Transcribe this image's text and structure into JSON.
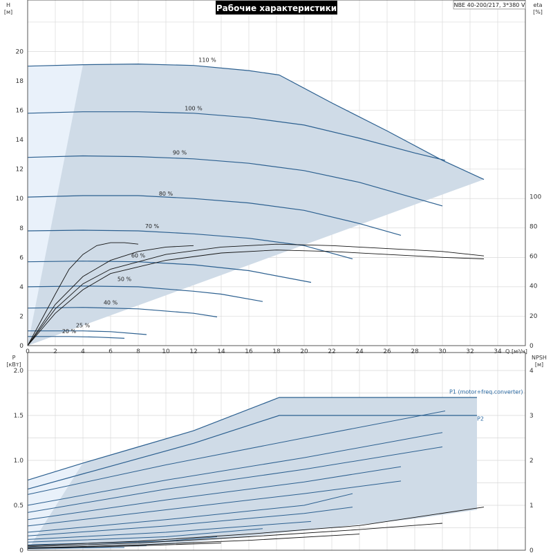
{
  "chart_data": [
    {
      "type": "line",
      "title": "Рабочие характеристики",
      "model_label": "NBE 40-200/217, 3*380 V",
      "ylabel": "H",
      "yunit": "[м]",
      "y2label": "eta",
      "y2unit": "[%]",
      "xlabel": "Q",
      "xunit": "[м³/ч]",
      "xlim": [
        0,
        36
      ],
      "ylim": [
        0,
        23.5
      ],
      "y2lim": [
        0,
        100
      ],
      "xticks": [
        "0",
        "2",
        "4",
        "6",
        "8",
        "10",
        "12",
        "14",
        "16",
        "18",
        "20",
        "22",
        "24",
        "26",
        "28",
        "30",
        "32",
        "34"
      ],
      "yticks": [
        "0",
        "2",
        "4",
        "6",
        "8",
        "10",
        "12",
        "14",
        "16",
        "18",
        "20"
      ],
      "y2ticks": [
        "0",
        "20",
        "40",
        "60",
        "80",
        "100"
      ],
      "grid": true,
      "envelope": [
        [
          0,
          0
        ],
        [
          0,
          19
        ],
        [
          4,
          19.1
        ],
        [
          8,
          19.15
        ],
        [
          12,
          19.05
        ],
        [
          16,
          18.7
        ],
        [
          18.2,
          18.4
        ],
        [
          22,
          16.5
        ],
        [
          26,
          14.6
        ],
        [
          30,
          12.6
        ],
        [
          33,
          11.3
        ],
        [
          0,
          0
        ]
      ],
      "series": [
        {
          "label": "110 %",
          "label_at": [
            13,
            19.2
          ],
          "points": [
            [
              0,
              19.0
            ],
            [
              4,
              19.1
            ],
            [
              8,
              19.15
            ],
            [
              12,
              19.05
            ],
            [
              16,
              18.7
            ],
            [
              18.2,
              18.4
            ]
          ]
        },
        {
          "label": "100 %",
          "label_at": [
            12,
            15.9
          ],
          "points": [
            [
              0,
              15.8
            ],
            [
              4,
              15.9
            ],
            [
              8,
              15.9
            ],
            [
              12,
              15.8
            ],
            [
              16,
              15.5
            ],
            [
              20,
              15.0
            ],
            [
              24,
              14.1
            ],
            [
              28,
              13.1
            ],
            [
              30.2,
              12.6
            ]
          ]
        },
        {
          "label": "90 %",
          "label_at": [
            11,
            12.9
          ],
          "points": [
            [
              0,
              12.8
            ],
            [
              4,
              12.9
            ],
            [
              8,
              12.85
            ],
            [
              12,
              12.7
            ],
            [
              16,
              12.4
            ],
            [
              20,
              11.9
            ],
            [
              24,
              11.1
            ],
            [
              27,
              10.3
            ],
            [
              30,
              9.5
            ]
          ]
        },
        {
          "label": "80 %",
          "label_at": [
            10,
            10.1
          ],
          "points": [
            [
              0,
              10.1
            ],
            [
              4,
              10.2
            ],
            [
              8,
              10.2
            ],
            [
              12,
              10.0
            ],
            [
              16,
              9.7
            ],
            [
              20,
              9.2
            ],
            [
              24,
              8.3
            ],
            [
              27,
              7.5
            ]
          ]
        },
        {
          "label": "70 %",
          "label_at": [
            9,
            7.9
          ],
          "points": [
            [
              0,
              7.8
            ],
            [
              4,
              7.85
            ],
            [
              8,
              7.8
            ],
            [
              12,
              7.6
            ],
            [
              16,
              7.3
            ],
            [
              20,
              6.8
            ],
            [
              23.5,
              5.9
            ]
          ]
        },
        {
          "label": "60 %",
          "label_at": [
            8,
            5.9
          ],
          "points": [
            [
              0,
              5.7
            ],
            [
              4,
              5.75
            ],
            [
              8,
              5.7
            ],
            [
              12,
              5.5
            ],
            [
              16,
              5.1
            ],
            [
              20.5,
              4.3
            ]
          ]
        },
        {
          "label": "50 %",
          "label_at": [
            7,
            4.3
          ],
          "points": [
            [
              0,
              4.0
            ],
            [
              4,
              4.05
            ],
            [
              8,
              4.0
            ],
            [
              12,
              3.7
            ],
            [
              14,
              3.5
            ],
            [
              17,
              3.0
            ]
          ]
        },
        {
          "label": "40 %",
          "label_at": [
            6,
            2.7
          ],
          "points": [
            [
              0,
              2.55
            ],
            [
              4,
              2.6
            ],
            [
              8,
              2.5
            ],
            [
              12,
              2.2
            ],
            [
              13.7,
              1.95
            ]
          ]
        },
        {
          "label": "25 %",
          "label_at": [
            4,
            1.15
          ],
          "points": [
            [
              0,
              1.0
            ],
            [
              4,
              1.0
            ],
            [
              6,
              0.95
            ],
            [
              8.6,
              0.75
            ]
          ]
        },
        {
          "label": "20 %",
          "label_at": [
            3,
            0.75
          ],
          "points": [
            [
              0,
              0.62
            ],
            [
              3,
              0.62
            ],
            [
              5,
              0.58
            ],
            [
              7,
              0.5
            ]
          ]
        }
      ],
      "efficiency_curves": [
        {
          "points": [
            [
              0,
              0
            ],
            [
              2,
              2.5
            ],
            [
              4,
              4.2
            ],
            [
              6,
              5.2
            ],
            [
              10,
              6.2
            ],
            [
              14,
              6.7
            ],
            [
              18,
              6.9
            ],
            [
              22,
              6.8
            ],
            [
              26,
              6.6
            ],
            [
              30,
              6.4
            ],
            [
              33,
              6.1
            ]
          ]
        },
        {
          "points": [
            [
              0,
              0
            ],
            [
              2,
              2.2
            ],
            [
              4,
              3.8
            ],
            [
              6,
              4.9
            ],
            [
              10,
              5.8
            ],
            [
              14,
              6.3
            ],
            [
              18,
              6.5
            ],
            [
              22,
              6.4
            ],
            [
              26,
              6.2
            ],
            [
              30,
              6.0
            ],
            [
              33,
              5.9
            ]
          ]
        },
        {
          "points": [
            [
              0,
              0
            ],
            [
              2,
              3.5
            ],
            [
              3,
              5.2
            ],
            [
              4,
              6.2
            ],
            [
              5,
              6.8
            ],
            [
              6,
              7.0
            ],
            [
              7,
              7.0
            ],
            [
              8,
              6.9
            ]
          ]
        },
        {
          "points": [
            [
              0,
              0
            ],
            [
              2,
              2.8
            ],
            [
              4,
              4.7
            ],
            [
              6,
              5.8
            ],
            [
              8,
              6.4
            ],
            [
              10,
              6.7
            ],
            [
              12,
              6.8
            ]
          ]
        }
      ]
    },
    {
      "type": "line",
      "ylabel": "P",
      "yunit": "[кВт]",
      "y2label": "NPSH",
      "y2unit": "[м]",
      "xlim": [
        0,
        36
      ],
      "ylim": [
        0,
        2.2
      ],
      "y2lim": [
        0,
        4.4
      ],
      "yticks": [
        "0",
        "0.5",
        "1.0",
        "1.5",
        "2.0"
      ],
      "y2ticks": [
        "0",
        "1",
        "2",
        "3",
        "4"
      ],
      "grid": true,
      "envelope": [
        [
          0,
          0.78
        ],
        [
          4,
          0.97
        ],
        [
          8,
          1.15
        ],
        [
          12,
          1.33
        ],
        [
          18.2,
          1.7
        ],
        [
          32.5,
          1.7
        ],
        [
          32.5,
          0.45
        ],
        [
          28,
          0.35
        ],
        [
          20,
          0.22
        ],
        [
          10,
          0.06
        ],
        [
          0,
          0.0
        ]
      ],
      "series": [
        {
          "name": "P1 (motor+freq.converter)",
          "label_at": [
            30.5,
            1.72
          ],
          "points": [
            [
              0,
              0.78
            ],
            [
              4,
              0.97
            ],
            [
              8,
              1.15
            ],
            [
              12,
              1.33
            ],
            [
              18.2,
              1.7
            ],
            [
              32.5,
              1.7
            ]
          ]
        },
        {
          "name": "P2",
          "label_at": [
            32.5,
            1.42
          ],
          "points": [
            [
              0,
              0.68
            ],
            [
              4,
              0.85
            ],
            [
              8,
              1.02
            ],
            [
              12,
              1.19
            ],
            [
              18.2,
              1.5
            ],
            [
              32.5,
              1.5
            ]
          ]
        },
        {
          "points": [
            [
              0,
              0.62
            ],
            [
              10,
              0.95
            ],
            [
              20,
              1.25
            ],
            [
              30.2,
              1.55
            ]
          ]
        },
        {
          "points": [
            [
              0,
              0.5
            ],
            [
              10,
              0.78
            ],
            [
              20,
              1.03
            ],
            [
              30,
              1.31
            ]
          ]
        },
        {
          "points": [
            [
              0,
              0.42
            ],
            [
              10,
              0.68
            ],
            [
              20,
              0.9
            ],
            [
              30,
              1.15
            ]
          ]
        },
        {
          "points": [
            [
              0,
              0.34
            ],
            [
              10,
              0.56
            ],
            [
              20,
              0.76
            ],
            [
              27,
              0.93
            ]
          ]
        },
        {
          "points": [
            [
              0,
              0.27
            ],
            [
              10,
              0.45
            ],
            [
              20,
              0.63
            ],
            [
              27,
              0.77
            ]
          ]
        },
        {
          "points": [
            [
              0,
              0.2
            ],
            [
              10,
              0.34
            ],
            [
              20,
              0.5
            ],
            [
              23.5,
              0.63
            ]
          ]
        },
        {
          "points": [
            [
              0,
              0.16
            ],
            [
              10,
              0.27
            ],
            [
              20,
              0.41
            ],
            [
              23.5,
              0.48
            ]
          ]
        },
        {
          "points": [
            [
              0,
              0.12
            ],
            [
              10,
              0.2
            ],
            [
              20.5,
              0.32
            ]
          ]
        },
        {
          "points": [
            [
              0,
              0.09
            ],
            [
              10,
              0.15
            ],
            [
              17,
              0.24
            ]
          ]
        },
        {
          "points": [
            [
              0,
              0.06
            ],
            [
              10,
              0.1
            ],
            [
              13.7,
              0.15
            ]
          ]
        },
        {
          "points": [
            [
              0,
              0.03
            ],
            [
              4,
              0.035
            ],
            [
              8.6,
              0.05
            ]
          ]
        },
        {
          "points": [
            [
              0,
              0.02
            ],
            [
              4,
              0.025
            ],
            [
              7,
              0.03
            ]
          ]
        }
      ],
      "npsh_curves": [
        {
          "points": [
            [
              0,
              0.1
            ],
            [
              8,
              0.2
            ],
            [
              16,
              0.36
            ],
            [
              24,
              0.55
            ],
            [
              33,
              0.96
            ]
          ]
        },
        {
          "points": [
            [
              0,
              0.08
            ],
            [
              8,
              0.16
            ],
            [
              16,
              0.3
            ],
            [
              24,
              0.46
            ],
            [
              30,
              0.6
            ]
          ]
        },
        {
          "points": [
            [
              0,
              0.05
            ],
            [
              8,
              0.12
            ],
            [
              16,
              0.22
            ],
            [
              24,
              0.36
            ]
          ]
        },
        {
          "points": [
            [
              0,
              0.04
            ],
            [
              8,
              0.1
            ],
            [
              14,
              0.16
            ]
          ]
        }
      ]
    }
  ]
}
